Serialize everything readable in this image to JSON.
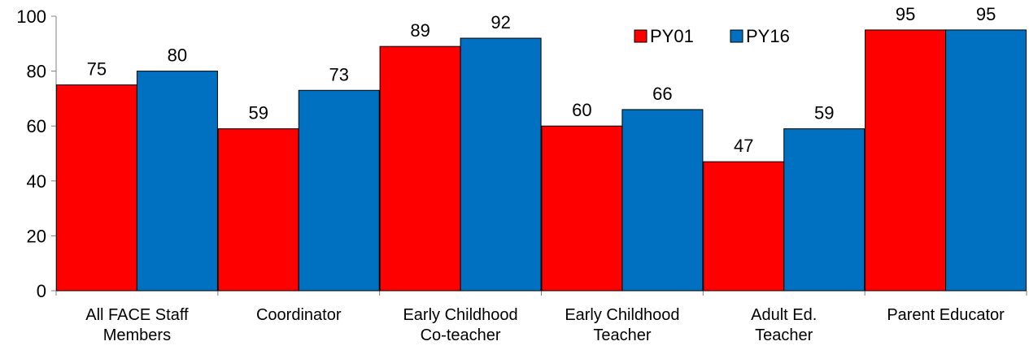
{
  "chart_data": {
    "type": "bar",
    "categories": [
      [
        "All FACE Staff",
        "Members"
      ],
      [
        "Coordinator"
      ],
      [
        "Early Childhood",
        "Co-teacher"
      ],
      [
        "Early Childhood",
        "Teacher"
      ],
      [
        "Adult Ed.",
        "Teacher"
      ],
      [
        "Parent Educator"
      ]
    ],
    "series": [
      {
        "name": "PY01",
        "values": [
          75,
          59,
          89,
          60,
          47,
          95
        ],
        "color": "#ff0000"
      },
      {
        "name": "PY16",
        "values": [
          80,
          73,
          92,
          66,
          59,
          95
        ],
        "color": "#0070c0"
      }
    ],
    "ylim": [
      0,
      100
    ],
    "yticks": [
      0,
      20,
      40,
      60,
      80,
      100
    ],
    "grid": false,
    "legend_position": "top-right",
    "data_labels": true
  }
}
